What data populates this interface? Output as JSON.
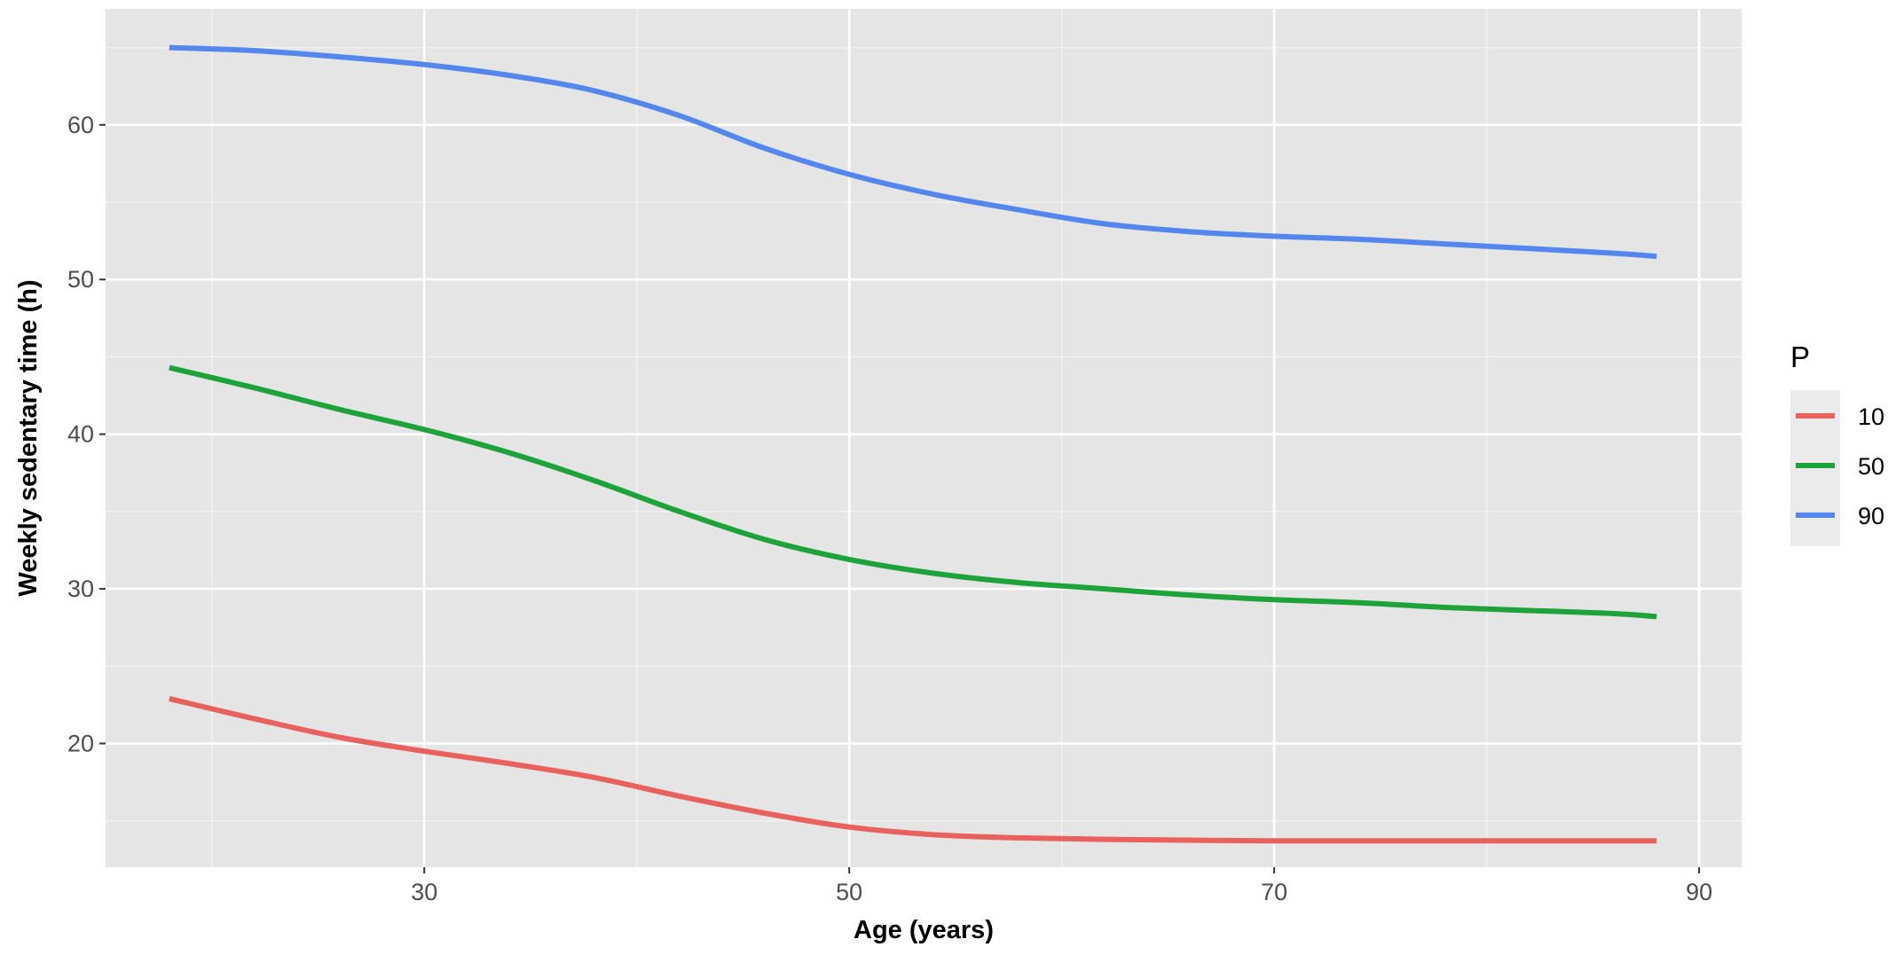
{
  "chart_data": {
    "type": "line",
    "title": "",
    "xlabel": "Age (years)",
    "ylabel": "Weekly sedentary time (h)",
    "xlim": [
      15,
      92
    ],
    "ylim": [
      12,
      67.5
    ],
    "x_ticks": [
      30,
      50,
      70,
      90
    ],
    "y_ticks": [
      20,
      30,
      40,
      50,
      60
    ],
    "x_tick_labels": [
      "30",
      "50",
      "70",
      "90"
    ],
    "y_tick_labels": [
      "20",
      "30",
      "40",
      "50",
      "60"
    ],
    "grid": true,
    "legend_title": "P",
    "legend_position": "right",
    "x": [
      18,
      22,
      26,
      30,
      34,
      38,
      42,
      46,
      50,
      54,
      58,
      62,
      66,
      70,
      74,
      78,
      82,
      86,
      88
    ],
    "series": [
      {
        "name": "10",
        "color": "#e8615c",
        "values": [
          22.9,
          21.6,
          20.4,
          19.5,
          18.7,
          17.8,
          16.6,
          15.5,
          14.6,
          14.1,
          13.9,
          13.8,
          13.75,
          13.7,
          13.7,
          13.7,
          13.7,
          13.7,
          13.7
        ]
      },
      {
        "name": "50",
        "color": "#1ea23a",
        "values": [
          44.3,
          43.0,
          41.6,
          40.3,
          38.8,
          37.0,
          35.0,
          33.2,
          31.9,
          31.0,
          30.4,
          30.0,
          29.6,
          29.3,
          29.1,
          28.8,
          28.6,
          28.4,
          28.2
        ]
      },
      {
        "name": "90",
        "color": "#5487ed",
        "values": [
          65.0,
          64.8,
          64.4,
          63.9,
          63.2,
          62.2,
          60.6,
          58.5,
          56.8,
          55.5,
          54.5,
          53.6,
          53.1,
          52.8,
          52.6,
          52.3,
          52.0,
          51.7,
          51.5
        ]
      }
    ]
  }
}
